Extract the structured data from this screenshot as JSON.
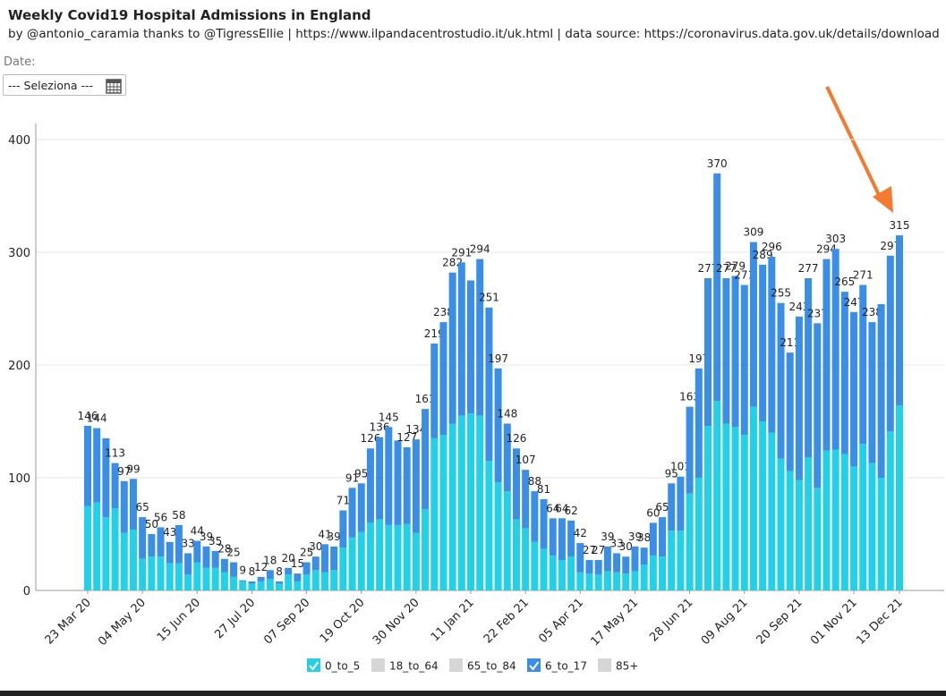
{
  "controls": {
    "date_label": "Date:",
    "select": "--- Seleziona ---"
  },
  "chart_data": {
    "type": "bar",
    "stacked": true,
    "title": "Weekly Covid19 Hospital Admissions in England",
    "subtitle": "by @antonio_caramia thanks to @TigressEllie | https://www.ilpandacentrostudio.it/uk.html | data source: https://coronavirus.data.gov.uk/details/download",
    "categories": [
      "23 Mar 20",
      null,
      null,
      null,
      null,
      null,
      "04 May 20",
      null,
      null,
      null,
      null,
      null,
      "15 Jun 20",
      null,
      null,
      null,
      null,
      null,
      "27 Jul 20",
      null,
      null,
      null,
      null,
      null,
      "07 Sep 20",
      null,
      null,
      null,
      null,
      null,
      "19 Oct 20",
      null,
      null,
      null,
      null,
      null,
      "30 Nov 20",
      null,
      null,
      null,
      null,
      null,
      "11 Jan 21",
      null,
      null,
      null,
      null,
      null,
      "22 Feb 21",
      null,
      null,
      null,
      null,
      null,
      "05 Apr 21",
      null,
      null,
      null,
      null,
      null,
      "17 May 21",
      null,
      null,
      null,
      null,
      null,
      "28 Jun 21",
      null,
      null,
      null,
      null,
      null,
      "09 Aug 21",
      null,
      null,
      null,
      null,
      null,
      "20 Sep 21",
      null,
      null,
      null,
      null,
      null,
      "01 Nov 21",
      null,
      null,
      null,
      null,
      "13 Dec 21"
    ],
    "series": [
      {
        "name": "0_to_5",
        "color": "#22d0e8",
        "values": [
          75,
          78,
          65,
          73,
          51,
          54,
          28,
          30,
          30,
          24,
          24,
          14,
          25,
          20,
          20,
          16,
          12,
          8,
          6,
          8,
          10,
          6,
          14,
          8,
          14,
          18,
          16,
          18,
          38,
          47,
          52,
          60,
          63,
          58,
          58,
          59,
          51,
          72,
          135,
          138,
          148,
          155,
          157,
          155,
          115,
          96,
          88,
          63,
          55,
          43,
          37,
          31,
          27,
          30,
          16,
          15,
          14,
          17,
          16,
          15,
          17,
          23,
          31,
          30,
          53,
          53,
          86,
          100,
          146,
          168,
          148,
          145,
          138,
          163,
          150,
          140,
          117,
          106,
          98,
          118,
          91,
          124,
          125,
          121,
          110,
          130,
          113,
          100,
          141,
          164
        ]
      },
      {
        "name": "6_to_17",
        "color": "#3a8ee6",
        "values": [
          71,
          66,
          70,
          40,
          46,
          45,
          37,
          20,
          26,
          19,
          34,
          19,
          19,
          19,
          15,
          12,
          13,
          1,
          2,
          4,
          8,
          2,
          6,
          7,
          11,
          12,
          25,
          21,
          33,
          44,
          43,
          66,
          73,
          87,
          75,
          68,
          83,
          89,
          84,
          100,
          134,
          136,
          118,
          139,
          136,
          101,
          60,
          63,
          52,
          45,
          44,
          33,
          37,
          32,
          26,
          12,
          13,
          22,
          17,
          15,
          22,
          15,
          29,
          35,
          42,
          48,
          77,
          97,
          131,
          202,
          129,
          134,
          133,
          146,
          139,
          156,
          138,
          105,
          145,
          159,
          146,
          170,
          178,
          144,
          137,
          141,
          125,
          154,
          156,
          151
        ]
      }
    ],
    "totals": [
      146,
      144,
      null,
      113,
      97,
      99,
      65,
      50,
      56,
      43,
      58,
      33,
      44,
      39,
      35,
      28,
      25,
      9,
      8,
      12,
      18,
      8,
      20,
      15,
      25,
      30,
      41,
      39,
      71,
      91,
      95,
      126,
      136,
      145,
      null,
      127,
      134,
      161,
      219,
      238,
      282,
      291,
      null,
      294,
      251,
      197,
      148,
      126,
      107,
      88,
      81,
      64,
      64,
      62,
      42,
      27,
      27,
      39,
      33,
      30,
      39,
      38,
      60,
      65,
      95,
      101,
      163,
      197,
      277,
      370,
      277,
      279,
      271,
      309,
      289,
      296,
      255,
      211,
      243,
      277,
      237,
      294,
      303,
      265,
      247,
      271,
      238,
      null,
      297,
      315
    ],
    "hidden_series": [
      "18_to_64",
      "65_to_84",
      "85+"
    ],
    "ylim": [
      0,
      400
    ],
    "yticks": [
      0,
      100,
      200,
      300,
      400
    ],
    "grid": true
  }
}
